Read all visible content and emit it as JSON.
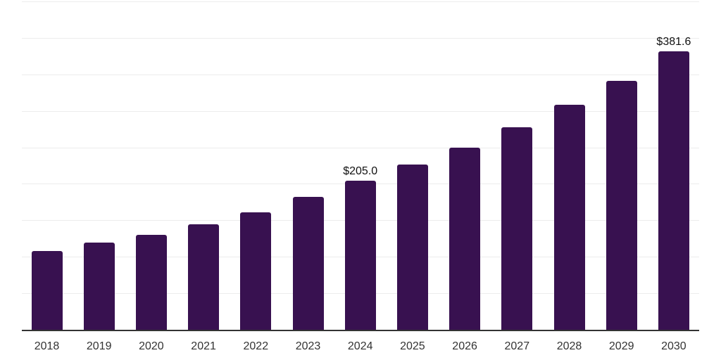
{
  "chart_data": {
    "type": "bar",
    "title": "",
    "xlabel": "",
    "ylabel": "",
    "categories": [
      "2018",
      "2019",
      "2020",
      "2021",
      "2022",
      "2023",
      "2024",
      "2025",
      "2026",
      "2027",
      "2028",
      "2029",
      "2030"
    ],
    "values": [
      108.5,
      120.3,
      130.9,
      145.1,
      161.7,
      182.4,
      205.0,
      226.4,
      250.0,
      277.9,
      308.9,
      341.9,
      381.6
    ],
    "labeled_points": [
      {
        "category": "2024",
        "index": 6,
        "label": "$205.0"
      },
      {
        "category": "2030",
        "index": 12,
        "label": "$381.6"
      }
    ],
    "ylim": [
      0,
      452
    ],
    "grid": {
      "visible": true,
      "interval": 50,
      "max_line": 450,
      "orientation": "horizontal"
    },
    "legend": "none",
    "y_axis_tick_labels": "none",
    "bar_corner": "rounded-top"
  },
  "colors": {
    "bar": "#381150",
    "grid_line": "#ececec",
    "axis_line": "#333333",
    "x_tick_label": "#333333",
    "value_label": "#111111",
    "background": "#ffffff"
  }
}
